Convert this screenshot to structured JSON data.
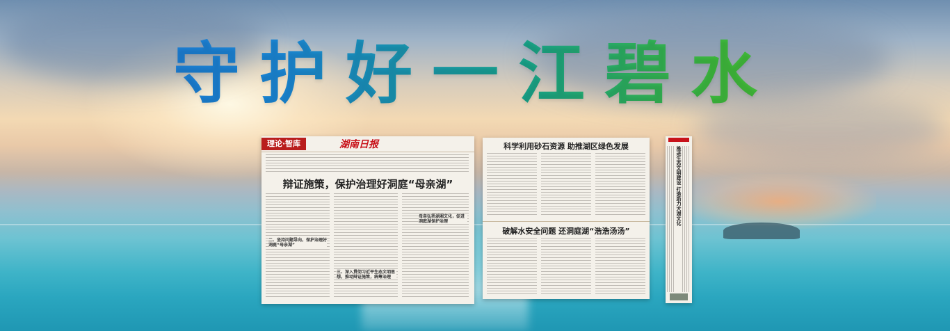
{
  "banner": {
    "title": "守护好一江碧水"
  },
  "page1": {
    "section": "理论·智库",
    "paper_name": "湖南日报",
    "headline": "辩证施策，保护治理好洞庭“母亲湖”",
    "subheads": [
      "二、坚持问题导向，保护治理好洞庭“母亲湖”",
      "母亲弘扬湖湘文化，促进洞庭湖保护治理",
      "三、深入贯彻习近平生态文明思想，推动辩证施策，统筹治理"
    ]
  },
  "page2": {
    "headline_top": "科学利用砂石资源  助推湖区绿色发展",
    "headline_bottom": "破解水安全问题  还洞庭湖“浩浩汤汤”"
  },
  "page3": {
    "vertical_title": "推进生态文明建设 打造助力大湖文化"
  }
}
